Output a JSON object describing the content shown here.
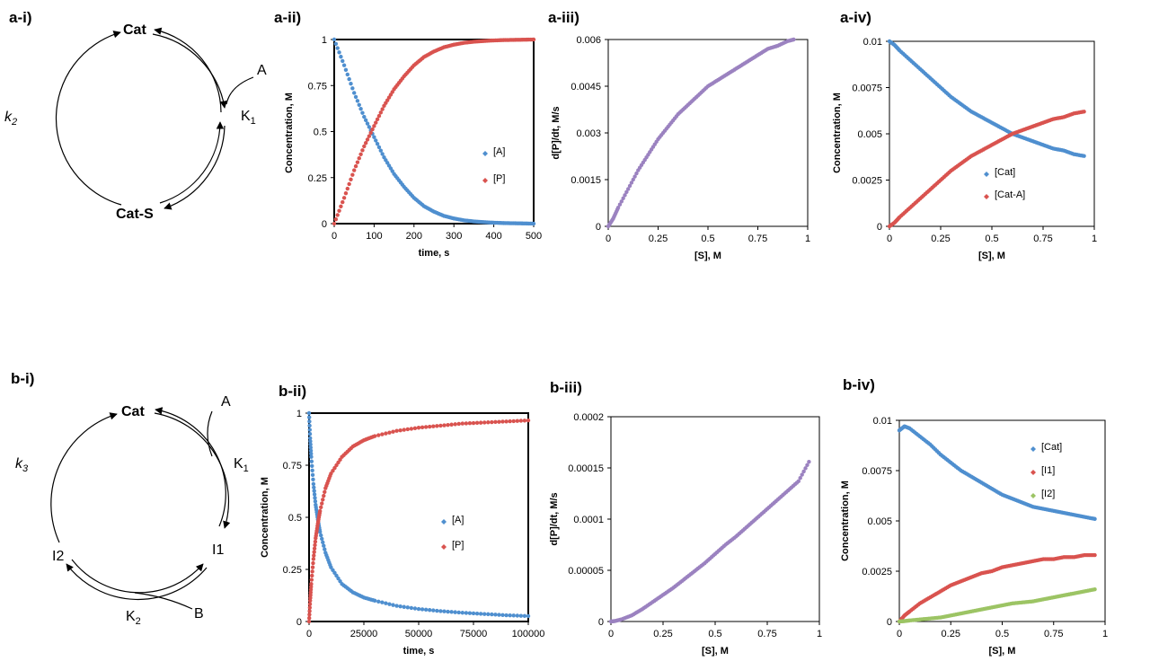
{
  "panels": {
    "a_i": "a-i)",
    "a_ii": "a-ii)",
    "a_iii": "a-iii)",
    "a_iv": "a-iv)",
    "b_i": "b-i)",
    "b_ii": "b-ii)",
    "b_iii": "b-iii)",
    "b_iv": "b-iv)"
  },
  "cycle_a": {
    "cat": "Cat",
    "substrate": "A",
    "k_eq": "K",
    "k_eq_sub": "1",
    "complex": "Cat-S",
    "k_rate": "k",
    "k_rate_sub": "2"
  },
  "cycle_b": {
    "cat": "Cat",
    "substrate_a": "A",
    "k1": "K",
    "k1_sub": "1",
    "intermediate1": "I1",
    "intermediate2": "I2",
    "substrate_b": "B",
    "k2": "K",
    "k2_sub": "2",
    "k3": "k",
    "k3_sub": "3"
  },
  "colors": {
    "blue": "#4f8fcf",
    "red": "#d9534f",
    "purple": "#9b82c0",
    "green": "#9cc464",
    "dark": "#222222"
  },
  "chart_data": [
    {
      "id": "a-ii",
      "type": "scatter",
      "title": "",
      "xlabel": "time, s",
      "ylabel": "Concentration, M",
      "xlim": [
        0,
        500
      ],
      "ylim": [
        0,
        1
      ],
      "xticks": [
        "0",
        "100",
        "200",
        "300",
        "400",
        "500"
      ],
      "yticks": [
        "0",
        "0.25",
        "0.5",
        "0.75",
        "1"
      ],
      "legend_position": "right-center",
      "series": [
        {
          "name": "[A]",
          "color": "blue",
          "x": [
            0,
            25,
            50,
            75,
            100,
            125,
            150,
            175,
            200,
            225,
            250,
            275,
            300,
            325,
            350,
            375,
            400,
            425,
            450,
            475,
            500
          ],
          "y": [
            1.0,
            0.86,
            0.71,
            0.58,
            0.47,
            0.36,
            0.27,
            0.2,
            0.14,
            0.095,
            0.065,
            0.042,
            0.028,
            0.018,
            0.012,
            0.008,
            0.005,
            0.003,
            0.002,
            0.001,
            0.0
          ]
        },
        {
          "name": "[P]",
          "color": "red",
          "x": [
            0,
            25,
            50,
            75,
            100,
            125,
            150,
            175,
            200,
            225,
            250,
            275,
            300,
            325,
            350,
            375,
            400,
            425,
            450,
            475,
            500
          ],
          "y": [
            0.0,
            0.14,
            0.29,
            0.42,
            0.53,
            0.64,
            0.73,
            0.8,
            0.86,
            0.905,
            0.935,
            0.958,
            0.972,
            0.982,
            0.988,
            0.992,
            0.995,
            0.997,
            0.998,
            0.999,
            1.0
          ]
        }
      ]
    },
    {
      "id": "a-iii",
      "type": "scatter",
      "title": "",
      "xlabel": "[S], M",
      "ylabel": "d[P]/dt, M/s",
      "xlim": [
        0,
        1
      ],
      "ylim": [
        0,
        0.006
      ],
      "xticks": [
        "0",
        "0.25",
        "0.5",
        "0.75",
        "1"
      ],
      "yticks": [
        "0",
        "0.0015",
        "0.003",
        "0.0045",
        "0.006"
      ],
      "series": [
        {
          "name": "",
          "color": "purple",
          "x": [
            0.0,
            0.025,
            0.05,
            0.1,
            0.15,
            0.2,
            0.25,
            0.3,
            0.35,
            0.4,
            0.45,
            0.5,
            0.55,
            0.6,
            0.65,
            0.7,
            0.75,
            0.8,
            0.85,
            0.9,
            0.93
          ],
          "y": [
            0.0,
            0.00025,
            0.0006,
            0.0012,
            0.0018,
            0.0023,
            0.0028,
            0.0032,
            0.0036,
            0.0039,
            0.0042,
            0.0045,
            0.0047,
            0.0049,
            0.0051,
            0.0053,
            0.0055,
            0.0057,
            0.0058,
            0.00595,
            0.006
          ]
        }
      ]
    },
    {
      "id": "a-iv",
      "type": "scatter",
      "title": "",
      "xlabel": "[S], M",
      "ylabel": "Concentration, M",
      "xlim": [
        0,
        1
      ],
      "ylim": [
        0,
        0.01
      ],
      "xticks": [
        "0",
        "0.25",
        "0.5",
        "0.75",
        "1"
      ],
      "yticks": [
        "0",
        "0.0025",
        "0.005",
        "0.0075",
        "0.01"
      ],
      "legend_position": "center",
      "series": [
        {
          "name": "[Cat]",
          "color": "blue",
          "x": [
            0.0,
            0.025,
            0.05,
            0.1,
            0.15,
            0.2,
            0.25,
            0.3,
            0.35,
            0.4,
            0.45,
            0.5,
            0.55,
            0.6,
            0.65,
            0.7,
            0.75,
            0.8,
            0.85,
            0.9,
            0.95
          ],
          "y": [
            0.01,
            0.0098,
            0.0095,
            0.009,
            0.0085,
            0.008,
            0.0075,
            0.007,
            0.0066,
            0.0062,
            0.0059,
            0.0056,
            0.0053,
            0.005,
            0.0048,
            0.0046,
            0.0044,
            0.0042,
            0.0041,
            0.0039,
            0.0038
          ]
        },
        {
          "name": "[Cat-A]",
          "color": "red",
          "x": [
            0.0,
            0.025,
            0.05,
            0.1,
            0.15,
            0.2,
            0.25,
            0.3,
            0.35,
            0.4,
            0.45,
            0.5,
            0.55,
            0.6,
            0.65,
            0.7,
            0.75,
            0.8,
            0.85,
            0.9,
            0.95
          ],
          "y": [
            0.0,
            0.0002,
            0.0005,
            0.001,
            0.0015,
            0.002,
            0.0025,
            0.003,
            0.0034,
            0.0038,
            0.0041,
            0.0044,
            0.0047,
            0.005,
            0.0052,
            0.0054,
            0.0056,
            0.0058,
            0.0059,
            0.0061,
            0.0062
          ]
        }
      ]
    },
    {
      "id": "b-ii",
      "type": "scatter",
      "title": "",
      "xlabel": "time, s",
      "ylabel": "Concentration, M",
      "xlim": [
        0,
        100000
      ],
      "ylim": [
        0,
        1
      ],
      "xticks": [
        "0",
        "25000",
        "50000",
        "75000",
        "100000"
      ],
      "yticks": [
        "0",
        "0.25",
        "0.5",
        "0.75",
        "1"
      ],
      "legend_position": "right-center",
      "series": [
        {
          "name": "[A]",
          "color": "blue",
          "x": [
            0,
            500,
            1000,
            2000,
            3000,
            4000,
            5000,
            7500,
            10000,
            15000,
            20000,
            25000,
            30000,
            40000,
            50000,
            60000,
            70000,
            80000,
            90000,
            100000
          ],
          "y": [
            1.0,
            0.88,
            0.79,
            0.66,
            0.56,
            0.49,
            0.43,
            0.33,
            0.26,
            0.18,
            0.14,
            0.115,
            0.1,
            0.075,
            0.06,
            0.05,
            0.042,
            0.036,
            0.03,
            0.026
          ]
        },
        {
          "name": "[P]",
          "color": "red",
          "x": [
            0,
            500,
            1000,
            2000,
            3000,
            4000,
            5000,
            7500,
            10000,
            15000,
            20000,
            25000,
            30000,
            40000,
            50000,
            60000,
            70000,
            80000,
            90000,
            100000
          ],
          "y": [
            0.0,
            0.1,
            0.18,
            0.3,
            0.4,
            0.47,
            0.53,
            0.64,
            0.71,
            0.79,
            0.84,
            0.87,
            0.89,
            0.915,
            0.93,
            0.94,
            0.95,
            0.955,
            0.96,
            0.965
          ]
        }
      ]
    },
    {
      "id": "b-iii",
      "type": "scatter",
      "title": "",
      "xlabel": "[S], M",
      "ylabel": "d[P]/dt, M/s",
      "xlim": [
        0,
        1
      ],
      "ylim": [
        0,
        0.0002
      ],
      "xticks": [
        "0",
        "0.25",
        "0.5",
        "0.75",
        "1"
      ],
      "yticks": [
        "0",
        "0.00005",
        "0.0001",
        "0.00015",
        "0.0002"
      ],
      "series": [
        {
          "name": "",
          "color": "purple",
          "x": [
            0.0,
            0.02,
            0.05,
            0.1,
            0.15,
            0.2,
            0.25,
            0.3,
            0.35,
            0.4,
            0.45,
            0.5,
            0.55,
            0.6,
            0.65,
            0.7,
            0.75,
            0.8,
            0.85,
            0.9,
            0.95
          ],
          "y": [
            0.0,
            5e-07,
            2e-06,
            6e-06,
            1.2e-05,
            1.9e-05,
            2.6e-05,
            3.3e-05,
            4.1e-05,
            4.9e-05,
            5.7e-05,
            6.6e-05,
            7.5e-05,
            8.3e-05,
            9.2e-05,
            0.000101,
            0.00011,
            0.000119,
            0.000128,
            0.000137,
            0.000156
          ]
        }
      ]
    },
    {
      "id": "b-iv",
      "type": "scatter",
      "title": "",
      "xlabel": "[S], M",
      "ylabel": "Concentration, M",
      "xlim": [
        0,
        1
      ],
      "ylim": [
        0,
        0.01
      ],
      "xticks": [
        "0",
        "0.25",
        "0.5",
        "0.75",
        "1"
      ],
      "yticks": [
        "0",
        "0.0025",
        "0.005",
        "0.0075",
        "0.01"
      ],
      "legend_position": "top-right",
      "series": [
        {
          "name": "[Cat]",
          "color": "blue",
          "x": [
            0.0,
            0.025,
            0.05,
            0.1,
            0.15,
            0.2,
            0.25,
            0.3,
            0.35,
            0.4,
            0.45,
            0.5,
            0.55,
            0.6,
            0.65,
            0.7,
            0.75,
            0.8,
            0.85,
            0.9,
            0.95
          ],
          "y": [
            0.0095,
            0.0097,
            0.0096,
            0.0092,
            0.0088,
            0.0083,
            0.0079,
            0.0075,
            0.0072,
            0.0069,
            0.0066,
            0.0063,
            0.0061,
            0.0059,
            0.0057,
            0.0056,
            0.0055,
            0.0054,
            0.0053,
            0.0052,
            0.0051
          ]
        },
        {
          "name": "[I1]",
          "color": "red",
          "x": [
            0.0,
            0.025,
            0.05,
            0.1,
            0.15,
            0.2,
            0.25,
            0.3,
            0.35,
            0.4,
            0.45,
            0.5,
            0.55,
            0.6,
            0.65,
            0.7,
            0.75,
            0.8,
            0.85,
            0.9,
            0.95
          ],
          "y": [
            0.0,
            0.0003,
            0.0005,
            0.0009,
            0.0012,
            0.0015,
            0.0018,
            0.002,
            0.0022,
            0.0024,
            0.0025,
            0.0027,
            0.0028,
            0.0029,
            0.003,
            0.0031,
            0.0031,
            0.0032,
            0.0032,
            0.0033,
            0.0033
          ]
        },
        {
          "name": "[I2]",
          "color": "green",
          "x": [
            0.0,
            0.025,
            0.05,
            0.1,
            0.15,
            0.2,
            0.25,
            0.3,
            0.35,
            0.4,
            0.45,
            0.5,
            0.55,
            0.6,
            0.65,
            0.7,
            0.75,
            0.8,
            0.85,
            0.9,
            0.95
          ],
          "y": [
            0.0,
            2e-05,
            5e-05,
            0.0001,
            0.00015,
            0.0002,
            0.0003,
            0.0004,
            0.0005,
            0.0006,
            0.0007,
            0.0008,
            0.0009,
            0.00095,
            0.001,
            0.0011,
            0.0012,
            0.0013,
            0.0014,
            0.0015,
            0.0016
          ]
        }
      ]
    }
  ]
}
